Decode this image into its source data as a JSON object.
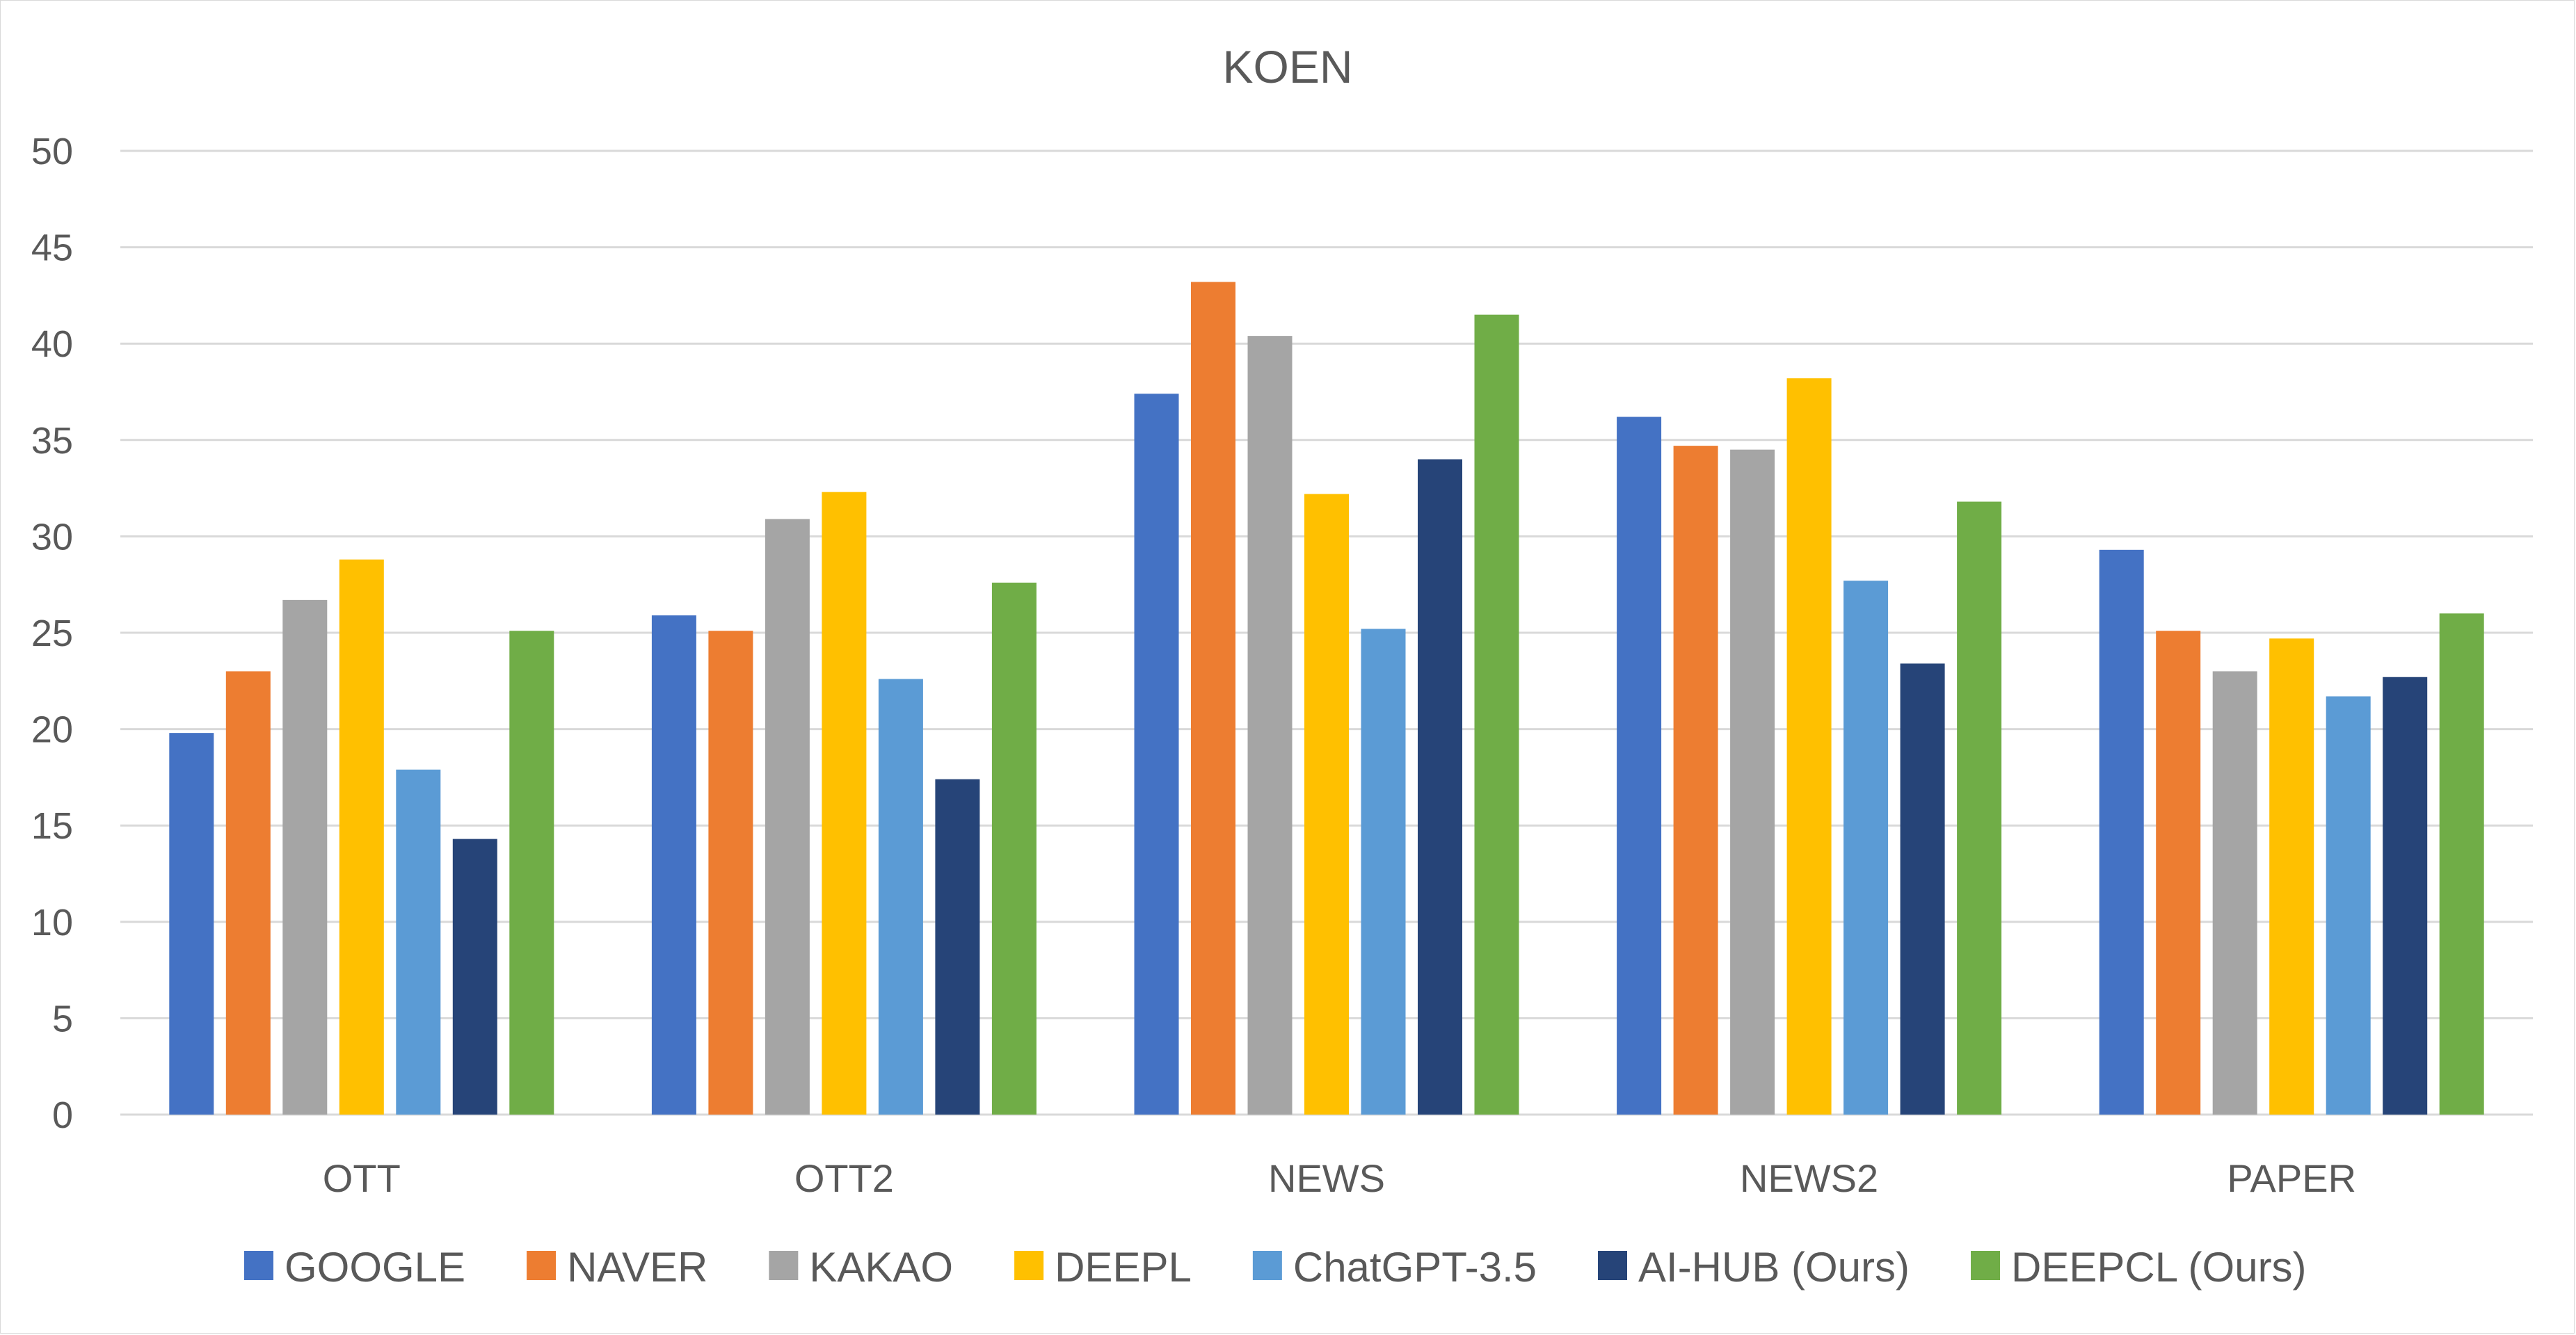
{
  "chart_data": {
    "type": "bar",
    "title": "KOEN",
    "xlabel": "",
    "ylabel": "",
    "ylim": [
      0,
      50
    ],
    "yticks": [
      0,
      5,
      10,
      15,
      20,
      25,
      30,
      35,
      40,
      45,
      50
    ],
    "grid": true,
    "legend_position": "bottom",
    "categories": [
      "OTT",
      "OTT2",
      "NEWS",
      "NEWS2",
      "PAPER"
    ],
    "series": [
      {
        "name": "GOOGLE",
        "color": "#4472C4",
        "values": [
          19.8,
          25.9,
          37.4,
          36.2,
          29.3
        ]
      },
      {
        "name": "NAVER",
        "color": "#ED7D31",
        "values": [
          23.0,
          25.1,
          43.2,
          34.7,
          25.1
        ]
      },
      {
        "name": "KAKAO",
        "color": "#A5A5A5",
        "values": [
          26.7,
          30.9,
          40.4,
          34.5,
          23.0
        ]
      },
      {
        "name": "DEEPL",
        "color": "#FFC000",
        "values": [
          28.8,
          32.3,
          32.2,
          38.2,
          24.7
        ]
      },
      {
        "name": "ChatGPT-3.5",
        "color": "#5B9BD5",
        "values": [
          17.9,
          22.6,
          25.2,
          27.7,
          21.7
        ]
      },
      {
        "name": "AI-HUB (Ours)",
        "color": "#264478",
        "values": [
          14.3,
          17.4,
          34.0,
          23.4,
          22.7
        ]
      },
      {
        "name": "DEEPCL (Ours)",
        "color": "#70AD47",
        "values": [
          25.1,
          27.6,
          41.5,
          31.8,
          26.0
        ]
      }
    ]
  }
}
